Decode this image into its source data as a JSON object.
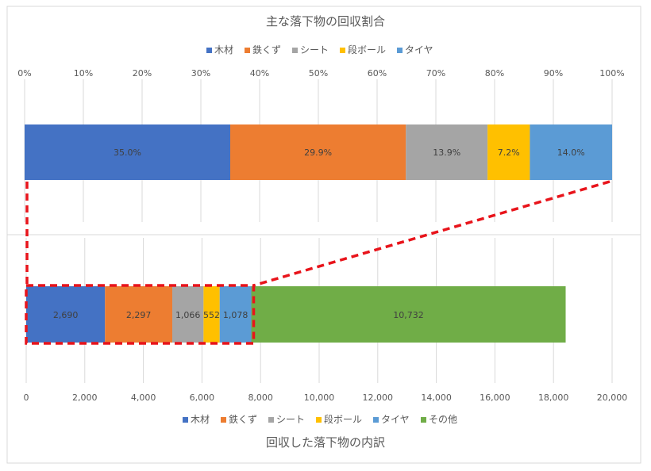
{
  "colors": {
    "wood": "#4472C4",
    "iron": "#ED7D31",
    "sheet": "#A5A5A5",
    "cardboard": "#FFC000",
    "tire": "#5B9BD5",
    "other": "#70AD47",
    "highlight": "#E8141B",
    "grid": "#D9D9D9",
    "text": "#595959"
  },
  "chart_data": [
    {
      "type": "bar",
      "orientation": "horizontal-stacked",
      "title": "主な落下物の回収割合",
      "legend_position": "top",
      "series": [
        {
          "name": "木材",
          "value": 35.0,
          "label": "35.0%",
          "color": "#4472C4"
        },
        {
          "name": "鉄くず",
          "value": 29.9,
          "label": "29.9%",
          "color": "#ED7D31"
        },
        {
          "name": "シート",
          "value": 13.9,
          "label": "13.9%",
          "color": "#A5A5A5"
        },
        {
          "name": "段ボール",
          "value": 7.2,
          "label": "7.2%",
          "color": "#FFC000"
        },
        {
          "name": "タイヤ",
          "value": 14.0,
          "label": "14.0%",
          "color": "#5B9BD5"
        }
      ],
      "xlim": [
        0,
        100
      ],
      "xticks": [
        "0%",
        "10%",
        "20%",
        "30%",
        "40%",
        "50%",
        "60%",
        "70%",
        "80%",
        "90%",
        "100%"
      ],
      "grid": true
    },
    {
      "type": "bar",
      "orientation": "horizontal-stacked",
      "title": "回収した落下物の内訳",
      "legend_position": "bottom",
      "series": [
        {
          "name": "木材",
          "value": 2690,
          "label": "2,690",
          "color": "#4472C4"
        },
        {
          "name": "鉄くず",
          "value": 2297,
          "label": "2,297",
          "color": "#ED7D31"
        },
        {
          "name": "シート",
          "value": 1066,
          "label": "1,066",
          "color": "#A5A5A5"
        },
        {
          "name": "段ボール",
          "value": 552,
          "label": "552",
          "color": "#FFC000"
        },
        {
          "name": "タイヤ",
          "value": 1078,
          "label": "1,078",
          "color": "#5B9BD5"
        },
        {
          "name": "その他",
          "value": 10732,
          "label": "10,732",
          "color": "#70AD47"
        }
      ],
      "xlim": [
        0,
        20000
      ],
      "xticks": [
        "0",
        "2,000",
        "4,000",
        "6,000",
        "8,000",
        "10,000",
        "12,000",
        "14,000",
        "16,000",
        "18,000",
        "20,000"
      ],
      "grid": true
    }
  ]
}
